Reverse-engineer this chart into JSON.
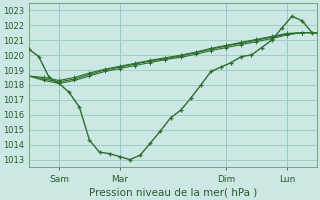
{
  "background_color": "#cce8e4",
  "grid_color": "#a0ccC8",
  "line_color": "#2d6e2d",
  "title": "Pression niveau de la mer( hPa )",
  "ylim": [
    1012.5,
    1023.5
  ],
  "yticks": [
    1013,
    1014,
    1015,
    1016,
    1017,
    1018,
    1019,
    1020,
    1021,
    1022,
    1023
  ],
  "xlim": [
    0,
    9.5
  ],
  "x_tick_labels": [
    "Sam",
    "Mar",
    "Dim",
    "Lun"
  ],
  "x_tick_positions": [
    1.0,
    3.0,
    6.5,
    8.5
  ],
  "x_vlines": [
    1.0,
    3.0,
    6.5,
    8.5
  ],
  "series0_x": [
    0,
    0.33,
    0.67,
    1.0,
    1.33,
    1.67,
    2.0,
    2.33,
    2.67,
    3.0,
    3.33,
    3.67,
    4.0,
    4.33,
    4.67,
    5.0,
    5.33,
    5.67,
    6.0,
    6.33,
    6.67,
    7.0,
    7.33,
    7.67,
    8.0,
    8.33,
    8.67,
    9.0,
    9.33
  ],
  "series0_y": [
    1020.4,
    1019.9,
    1018.5,
    1018.1,
    1017.5,
    1016.5,
    1014.3,
    1013.5,
    1013.4,
    1013.2,
    1013.0,
    1013.3,
    1014.1,
    1014.9,
    1015.8,
    1016.3,
    1017.1,
    1018.0,
    1018.9,
    1019.2,
    1019.5,
    1019.9,
    1020.0,
    1020.5,
    1021.0,
    1021.8,
    1022.6,
    1022.3,
    1021.5
  ],
  "forecast_x": [
    0,
    0.5,
    1.0,
    1.5,
    2.0,
    2.5,
    3.0,
    3.5,
    4.0,
    4.5,
    5.0,
    5.5,
    6.0,
    6.5,
    7.0,
    7.5,
    8.0,
    8.5,
    9.0,
    9.5
  ],
  "forecast1_y": [
    1018.6,
    1018.3,
    1018.1,
    1018.3,
    1018.6,
    1018.9,
    1019.1,
    1019.3,
    1019.5,
    1019.7,
    1019.85,
    1020.05,
    1020.3,
    1020.5,
    1020.7,
    1020.9,
    1021.1,
    1021.35,
    1021.5,
    1021.5
  ],
  "forecast2_y": [
    1018.6,
    1018.4,
    1018.2,
    1018.4,
    1018.7,
    1019.0,
    1019.2,
    1019.4,
    1019.6,
    1019.75,
    1019.95,
    1020.15,
    1020.4,
    1020.6,
    1020.8,
    1021.0,
    1021.2,
    1021.4,
    1021.5,
    1021.5
  ],
  "forecast3_y": [
    1018.6,
    1018.5,
    1018.3,
    1018.5,
    1018.8,
    1019.05,
    1019.25,
    1019.45,
    1019.65,
    1019.82,
    1019.99,
    1020.2,
    1020.45,
    1020.65,
    1020.85,
    1021.05,
    1021.25,
    1021.45,
    1021.5,
    1021.5
  ]
}
